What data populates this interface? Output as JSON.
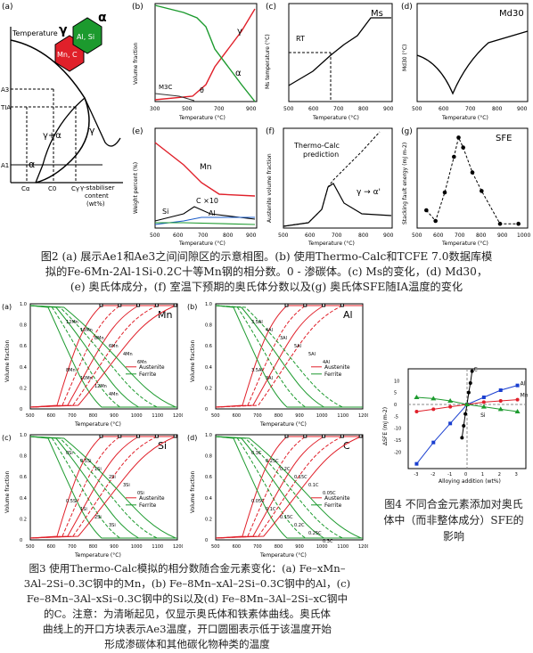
{
  "fig2": {
    "a": {
      "panel": "(a)",
      "ylabel": "Temperature",
      "alpha": "α",
      "gamma": "γ",
      "gamma_alpha": "γ+α",
      "hex_alpha": "Al, Si",
      "hex_gamma": "Mn, C",
      "y_ticks": [
        "A3",
        "TIA",
        "A1"
      ],
      "x_ticks": [
        "Cα",
        "C0",
        "Cγ"
      ],
      "xlabel": [
        "γ-stabiliser",
        "content",
        "(wt%)"
      ]
    },
    "b": {
      "panel": "(b)",
      "ylabel": "Volume fraction",
      "xlabel": "Temperature (°C)",
      "xticks": [
        "300",
        "500",
        "700",
        "900"
      ],
      "gamma": "γ",
      "alpha": "α",
      "m3c": "M3C",
      "theta": "θ"
    },
    "c": {
      "panel": "(c)",
      "title": "Ms",
      "ylabel": "Ms temperature (°C)",
      "xlabel": "Temperature (°C)",
      "rt": "RT",
      "xticks": [
        "500",
        "600",
        "700",
        "800",
        "900"
      ],
      "yticks": [
        "-300",
        "-200",
        "-100",
        "0",
        "100",
        "200",
        "300"
      ]
    },
    "d": {
      "panel": "(d)",
      "title": "Md30",
      "ylabel": "Md30 (°C)",
      "xlabel": "Temperature (°C)",
      "xticks": [
        "500",
        "600",
        "700",
        "800",
        "900"
      ],
      "yticks": [
        "300",
        "400",
        "500",
        "600"
      ]
    },
    "e": {
      "panel": "(e)",
      "ylabel": "Weight percent (%)",
      "xlabel": "Temperature (°C)",
      "xticks": [
        "500",
        "600",
        "700",
        "800",
        "900"
      ],
      "yticks": [
        "0",
        "5",
        "10",
        "15",
        "20",
        "25"
      ],
      "mn": "Mn",
      "c10": "C ×10",
      "si": "Si",
      "al": "Al"
    },
    "f": {
      "panel": "(f)",
      "ylabel": "Austenite volume fraction",
      "xlabel": "Temperature (°C)",
      "xticks": [
        "500",
        "600",
        "700",
        "800",
        "900"
      ],
      "pred1": "Thermo-Calc",
      "pred2": "prediction",
      "trans": "γ → α'"
    },
    "g": {
      "panel": "(g)",
      "title": "SFE",
      "ylabel": "Stacking fault energy (mJ m-2)",
      "xlabel": "Temperature (°C)",
      "xticks": [
        "500",
        "600",
        "700",
        "800",
        "900",
        "1000"
      ],
      "yticks": [
        "0",
        "2",
        "4",
        "6",
        "8",
        "10",
        "12",
        "14"
      ]
    }
  },
  "caption2": [
    "图2 (a) 展示Ae1和Ae3之间间隙区的示意相图。(b) 使用Thermo-Calc和TCFE 7.0数据库模",
    "拟的Fe-6Mn-2Al-1Si-0.2C十等Mn钢的相分数。0 - 渗碳体。(c) Ms的变化，(d) Md30，",
    "(e) 奥氏体成分，(f) 室温下预期的奥氏体分数以及(g) 奥氏体SFE随IA温度的变化"
  ],
  "fig3": {
    "ylabel": "Volume fraction",
    "xlabel": "Temperature (°C)",
    "xticks": [
      "500",
      "600",
      "700",
      "800",
      "900",
      "1000",
      "1100",
      "1200"
    ],
    "yticks": [
      "0",
      "0.2",
      "0.4",
      "0.6",
      "0.8",
      "1.0"
    ],
    "legend_austenite": "Austenite",
    "legend_ferrite": "Ferrite",
    "panels": [
      {
        "panel": "(a)",
        "title": "Mn",
        "labels": [
          "12Mn",
          "10Mn",
          "8Mn",
          "6Mn",
          "4Mn",
          "6Mn",
          "8Mn",
          "10Mn",
          "12Mn",
          "4Mn"
        ]
      },
      {
        "panel": "(b)",
        "title": "Al",
        "labels": [
          "3.5Al",
          "4Al",
          "3Al",
          "5Al",
          "5Al",
          "4Al",
          "3.5Al",
          "3Al"
        ]
      },
      {
        "panel": "(c)",
        "title": "Si",
        "labels": [
          "0Si",
          "0.5Si",
          "1Si",
          "2Si",
          "3Si",
          "0Si",
          "0.5Si",
          "1Si",
          "2Si",
          "3Si"
        ]
      },
      {
        "panel": "(d)",
        "title": "C",
        "labels": [
          "0.3C",
          "0.25C",
          "0.2C",
          "0.15C",
          "0.1C",
          "0.05C",
          "0.05C",
          "0.1C",
          "0.15C",
          "0.2C",
          "0.25C",
          "0.3C"
        ]
      }
    ]
  },
  "fig4": {
    "ylabel": "ΔSFE (mJ m-2)",
    "xlabel": "Alloying addition (wt%)",
    "xticks": [
      "-3",
      "-2",
      "-1",
      "0",
      "1",
      "2",
      "3"
    ],
    "yticks": [
      "-20",
      "-15",
      "-10",
      "-5",
      "0",
      "5",
      "10"
    ],
    "series_labels": [
      "C",
      "Al",
      "Mn",
      "Si"
    ]
  },
  "caption4": [
    "图4 不同合金元素添加对奥氏",
    "体中（而非整体成分）SFE的",
    "影响"
  ],
  "caption3": [
    "图3 使用Thermo-Calc模拟的相分数随合金元素变化：(a) Fe–xMn–",
    "3Al–2Si–0.3C钢中的Mn，(b) Fe–8Mn–xAl–2Si–0.3C钢中的Al，(c)",
    "Fe–8Mn–3Al–xSi–0.3C钢中的Si以及(d) Fe–8Mn–3Al–2Si–xC钢中",
    "的C。注意：为清晰起见，仅显示奥氏体和铁素体曲线。奥氏体",
    "曲线上的开口方块表示Ae3温度，开口圆圈表示低于该温度开始",
    "形成渗碳体和其他碳化物种类的温度"
  ],
  "chart_data": [
    {
      "type": "line",
      "panel": "(b)",
      "x": [
        300,
        500,
        600,
        650,
        700,
        800,
        900
      ],
      "series": [
        {
          "name": "γ",
          "values": [
            0.02,
            0.05,
            0.1,
            0.22,
            0.4,
            0.68,
            1.0
          ]
        },
        {
          "name": "α",
          "values": [
            0.98,
            0.9,
            0.88,
            0.72,
            0.58,
            0.32,
            0.0
          ]
        }
      ]
    },
    {
      "type": "line",
      "panel": "(g)",
      "title": "SFE",
      "x": [
        500,
        550,
        600,
        650,
        675,
        700,
        750,
        800,
        900,
        1000
      ],
      "values": [
        2.5,
        1.0,
        5.0,
        10.0,
        12.7,
        11.3,
        7.8,
        5.2,
        0.6,
        0.6
      ]
    },
    {
      "type": "scatter",
      "panel": "fig4",
      "xlabel": "Alloying addition (wt%)",
      "series": [
        {
          "name": "C",
          "x": [
            -0.3,
            -0.2,
            -0.1,
            0,
            0.1,
            0.2,
            0.3
          ],
          "values": [
            -14,
            -9,
            -4,
            0,
            5,
            9,
            14
          ]
        },
        {
          "name": "Al",
          "x": [
            -3,
            -2,
            -1,
            0,
            1,
            2,
            3
          ],
          "values": [
            -25,
            -16,
            -8,
            0,
            3,
            6,
            8
          ]
        },
        {
          "name": "Mn",
          "x": [
            -3,
            -2,
            -1,
            0,
            1,
            2,
            3
          ],
          "values": [
            -3,
            -2,
            -1,
            0,
            1,
            1.5,
            2
          ]
        },
        {
          "name": "Si",
          "x": [
            -3,
            -2,
            -1,
            0,
            1,
            2,
            3
          ],
          "values": [
            3,
            2.5,
            1.5,
            0,
            -1,
            -2,
            -3
          ]
        }
      ]
    }
  ]
}
